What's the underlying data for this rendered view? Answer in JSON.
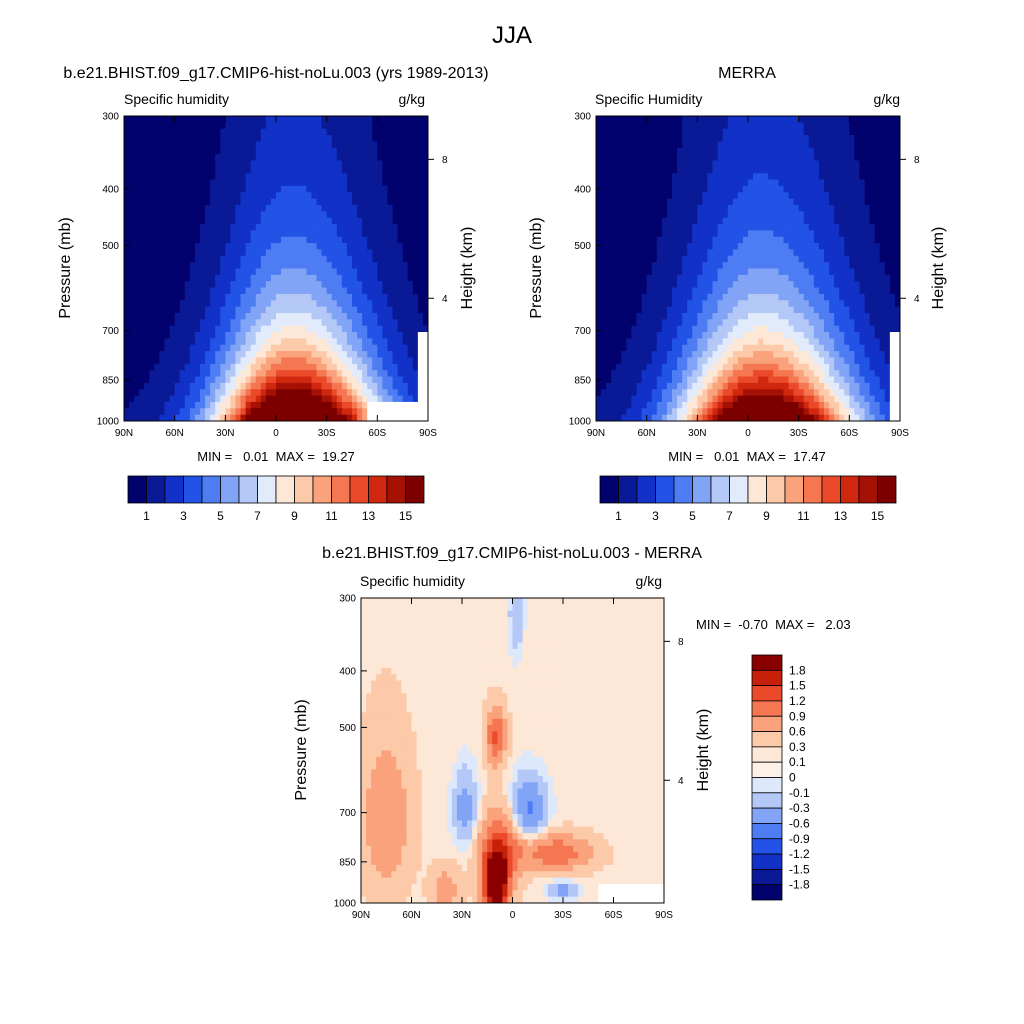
{
  "figure": {
    "title": "JJA"
  },
  "palette": {
    "seq": [
      "#02026e",
      "#0a1a96",
      "#1131c7",
      "#2353e6",
      "#4e7cf2",
      "#82a4f6",
      "#b3c8f7",
      "#e2ebfb",
      "#fde7d6",
      "#fcc9a9",
      "#f9a27c",
      "#f57752",
      "#ea4a2a",
      "#d0280f",
      "#a61105",
      "#7c0000"
    ],
    "diff": [
      "#0a1a96",
      "#1131c7",
      "#2353e6",
      "#4e7cf2",
      "#82a4f6",
      "#b3c8f7",
      "#dde8fa",
      "#fde7d6",
      "#fcc9a9",
      "#f9a27c",
      "#f57752",
      "#ea4a2a",
      "#c72008",
      "#8a0000"
    ]
  },
  "chart_data": [
    {
      "type": "heatmap",
      "title": "b.e21.BHIST.f09_g17.CMIP6-hist-noLu.003 (yrs 1989-2013)",
      "left_label": "Specific humidity",
      "right_label": "g/kg",
      "ylabel": "Pressure (mb)",
      "ylabel_right": "Height (km)",
      "x_ticks": [
        "90N",
        "60N",
        "30N",
        "0",
        "30S",
        "60S",
        "90S"
      ],
      "y_ticks": [
        "300",
        "400",
        "500",
        "700",
        "850",
        "1000"
      ],
      "y_ticks_right": [
        "8",
        "4"
      ],
      "stats": "MIN =   0.01  MAX =  19.27",
      "colorbar_labels": [
        "1",
        "3",
        "5",
        "7",
        "9",
        "11",
        "13",
        "15"
      ],
      "field": {
        "peak_lat": -10,
        "amp": 19.27,
        "width": 25,
        "skew": 0.35,
        "scale_h": 0.3,
        "missing": [
          [
            55,
            90,
            920,
            1000
          ],
          [
            85,
            90,
            700,
            1000
          ]
        ]
      }
    },
    {
      "type": "heatmap",
      "title": "MERRA",
      "left_label": "Specific Humidity",
      "right_label": "g/kg",
      "ylabel": "Pressure (mb)",
      "ylabel_right": "Height (km)",
      "x_ticks": [
        "90N",
        "60N",
        "30N",
        "0",
        "30S",
        "60S",
        "90S"
      ],
      "y_ticks": [
        "300",
        "400",
        "500",
        "700",
        "850",
        "1000"
      ],
      "y_ticks_right": [
        "8",
        "4"
      ],
      "stats": "MIN =   0.01  MAX =  17.47",
      "colorbar_labels": [
        "1",
        "3",
        "5",
        "7",
        "9",
        "11",
        "13",
        "15"
      ],
      "field": {
        "peak_lat": -8,
        "amp": 17.47,
        "width": 27,
        "skew": 0.35,
        "scale_h": 0.32,
        "missing": [
          [
            85,
            90,
            700,
            1000
          ]
        ]
      }
    },
    {
      "type": "heatmap",
      "title": "b.e21.BHIST.f09_g17.CMIP6-hist-noLu.003 - MERRA",
      "left_label": "Specific humidity",
      "right_label": "g/kg",
      "ylabel": "Pressure (mb)",
      "ylabel_right": "Height (km)",
      "x_ticks": [
        "90N",
        "60N",
        "30N",
        "0",
        "30S",
        "60S",
        "90S"
      ],
      "y_ticks": [
        "300",
        "400",
        "500",
        "700",
        "850",
        "1000"
      ],
      "y_ticks_right": [
        "8",
        "4"
      ],
      "stats": "MIN =  -0.70  MAX =   2.03",
      "colorbar_labels": [
        "1.8",
        "1.5",
        "1.2",
        "0.9",
        "0.6",
        "0.3",
        "0.1",
        "0",
        "-0.1",
        "-0.3",
        "-0.6",
        "-0.9",
        "-1.2",
        "-1.5",
        "-1.8"
      ],
      "levels": [
        -1.8,
        -1.5,
        -1.2,
        -0.9,
        -0.6,
        -0.3,
        -0.1,
        0,
        0.1,
        0.3,
        0.6,
        0.9,
        1.2,
        1.5,
        1.8
      ]
    }
  ]
}
